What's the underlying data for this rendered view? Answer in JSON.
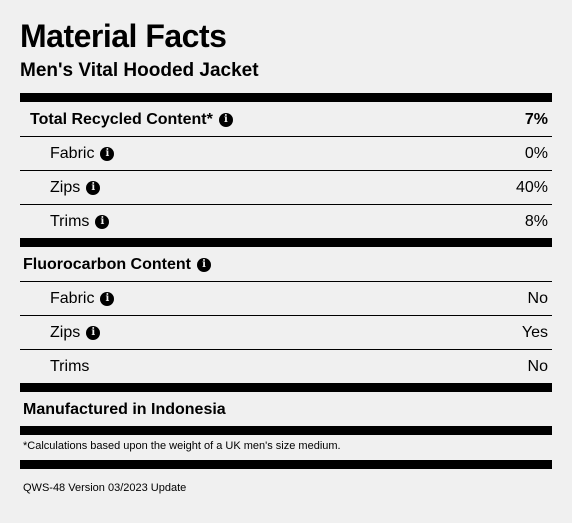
{
  "title": "Material Facts",
  "subtitle": "Men's Vital Hooded Jacket",
  "recycled": {
    "label": "Total Recycled Content*",
    "value": "7%",
    "items": [
      {
        "label": "Fabric",
        "value": "0%"
      },
      {
        "label": "Zips",
        "value": "40%"
      },
      {
        "label": "Trims",
        "value": "8%"
      }
    ]
  },
  "fluorocarbon": {
    "label": "Fluorocarbon Content",
    "items": [
      {
        "label": "Fabric",
        "value": "No"
      },
      {
        "label": "Zips",
        "value": "Yes"
      },
      {
        "label": "Trims",
        "value": "No"
      }
    ]
  },
  "manufactured": "Manufactured in Indonesia",
  "footnote": "*Calculations based upon the weight of a UK men's size medium.",
  "version": "QWS-48 Version 03/2023 Update",
  "info_glyph": "i"
}
